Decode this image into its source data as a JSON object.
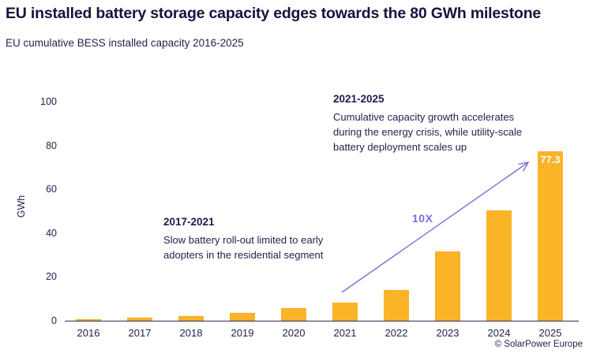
{
  "header": {
    "title": "EU installed battery storage capacity edges towards the 80 GWh milestone",
    "subtitle": "EU cumulative BESS installed capacity 2016-2025"
  },
  "chart_data": {
    "type": "bar",
    "categories": [
      "2016",
      "2017",
      "2018",
      "2019",
      "2020",
      "2021",
      "2022",
      "2023",
      "2024",
      "2025"
    ],
    "values": [
      0.7,
      1.3,
      2.2,
      3.6,
      5.6,
      8.3,
      14,
      31.5,
      50.5,
      77.3
    ],
    "data_labels": {
      "2025": "77.3"
    },
    "title": "EU installed battery storage capacity edges towards the 80 GWh milestone",
    "subtitle": "EU cumulative BESS installed capacity 2016-2025",
    "xlabel": "",
    "ylabel": "GWh",
    "yticks": [
      0,
      20,
      40,
      60,
      80,
      100
    ],
    "ylim": [
      0,
      103
    ],
    "grid": false,
    "legend": "none",
    "bar_color": "#fbb327",
    "annotations": [
      {
        "heading": "2017-2021",
        "body": "Slow battery roll-out limited to early adopters in the residential segment"
      },
      {
        "heading": "2021-2025",
        "body": "Cumulative capacity growth accelerates during the energy crisis, while utility-scale battery deployment scales up"
      }
    ],
    "arrow": {
      "label": "10X",
      "from_year": "2021",
      "to_year": "2025",
      "color": "#7e6cd8"
    }
  },
  "annotations": {
    "early": {
      "heading": "2017-2021",
      "body": "Slow battery roll-out limited to early adopters in the residential segment"
    },
    "late": {
      "heading": "2021-2025",
      "body": "Cumulative capacity growth accelerates during the energy crisis, while utility-scale battery deployment scales up"
    }
  },
  "footer": {
    "attribution": "© SolarPower Europe"
  },
  "colors": {
    "bar": "#fbb327",
    "text_dark": "#1b1b4e",
    "arrow": "#7e6cd8",
    "axis": "#2b2b59",
    "background": "#ffffff"
  }
}
